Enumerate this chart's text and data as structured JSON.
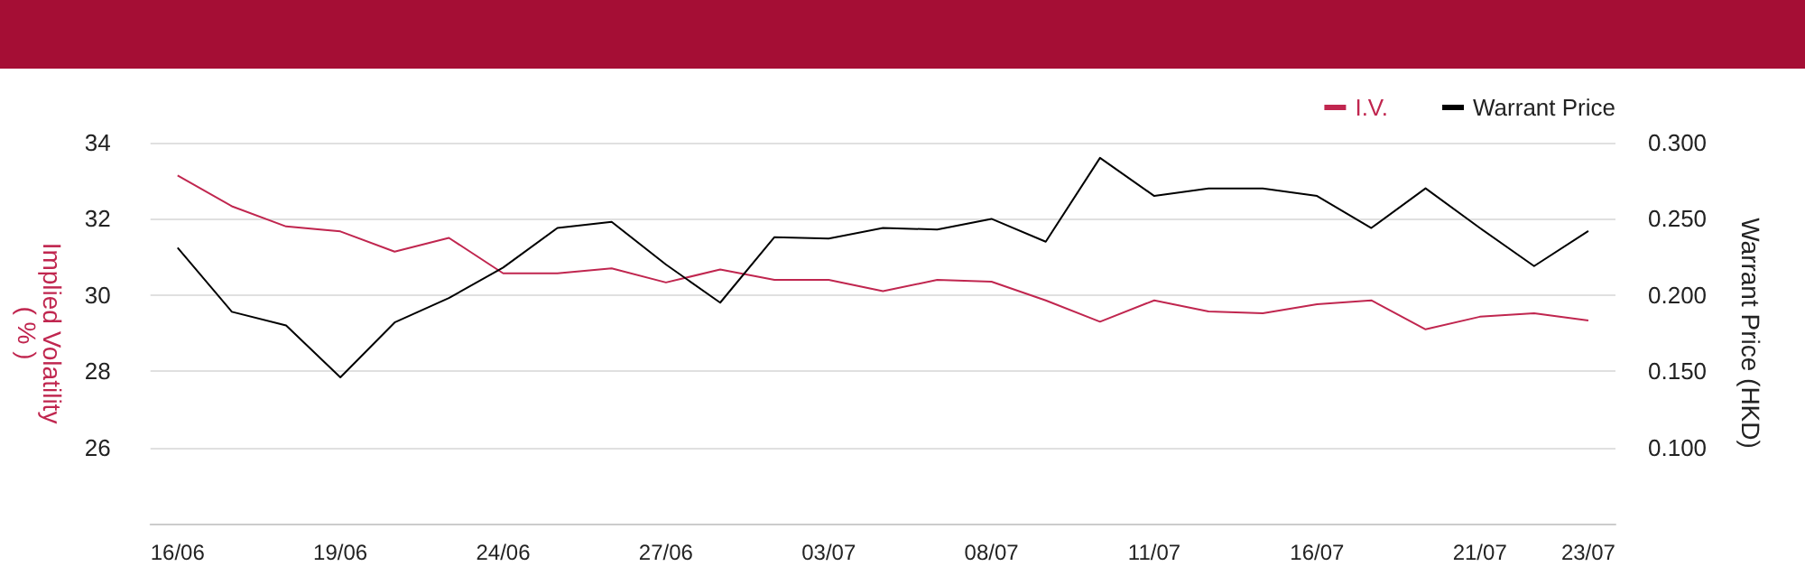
{
  "chart_data": {
    "type": "line",
    "categories": [
      "16/06",
      null,
      null,
      "19/06",
      null,
      null,
      "24/06",
      null,
      null,
      "27/06",
      null,
      null,
      "03/07",
      null,
      null,
      "08/07",
      null,
      null,
      "11/07",
      null,
      null,
      "16/07",
      null,
      null,
      "21/07",
      null,
      "23/07"
    ],
    "series": [
      {
        "name": "I.V.",
        "color": "#c0264f",
        "values": [
          33.14,
          32.33,
          31.8,
          31.67,
          31.14,
          31.5,
          30.57,
          30.57,
          30.7,
          30.33,
          30.67,
          30.4,
          30.4,
          30.1,
          30.4,
          30.35,
          29.86,
          29.3,
          29.86,
          29.57,
          29.52,
          29.76,
          29.86,
          29.1,
          29.43,
          29.52,
          29.33
        ]
      },
      {
        "name": "Warrant Price",
        "color": "#000000",
        "axis": "y2",
        "values": [
          0.231,
          0.189,
          0.18,
          0.146,
          0.182,
          0.198,
          0.218,
          0.244,
          0.248,
          0.22,
          0.195,
          0.238,
          0.237,
          0.244,
          0.243,
          0.25,
          0.235,
          0.29,
          0.265,
          0.27,
          0.27,
          0.265,
          0.244,
          0.27,
          0.244,
          0.219,
          0.242
        ]
      }
    ],
    "ylabel": "Implied Volatility\n( % )",
    "y2label": "Warrant Price (HKD)",
    "ylim": [
      24,
      34
    ],
    "yticks": [
      26,
      28,
      30,
      32,
      34
    ],
    "y2lim": [
      0.05,
      0.3
    ],
    "y2ticks": [
      {
        "value": 0.1,
        "label": "0.100"
      },
      {
        "value": 0.15,
        "label": "0.150"
      },
      {
        "value": 0.2,
        "label": "0.200"
      },
      {
        "value": 0.25,
        "label": "0.250"
      },
      {
        "value": 0.3,
        "label": "0.300"
      }
    ],
    "grid": "y",
    "legend": "top right",
    "marker": "none",
    "line_style": "solid"
  }
}
